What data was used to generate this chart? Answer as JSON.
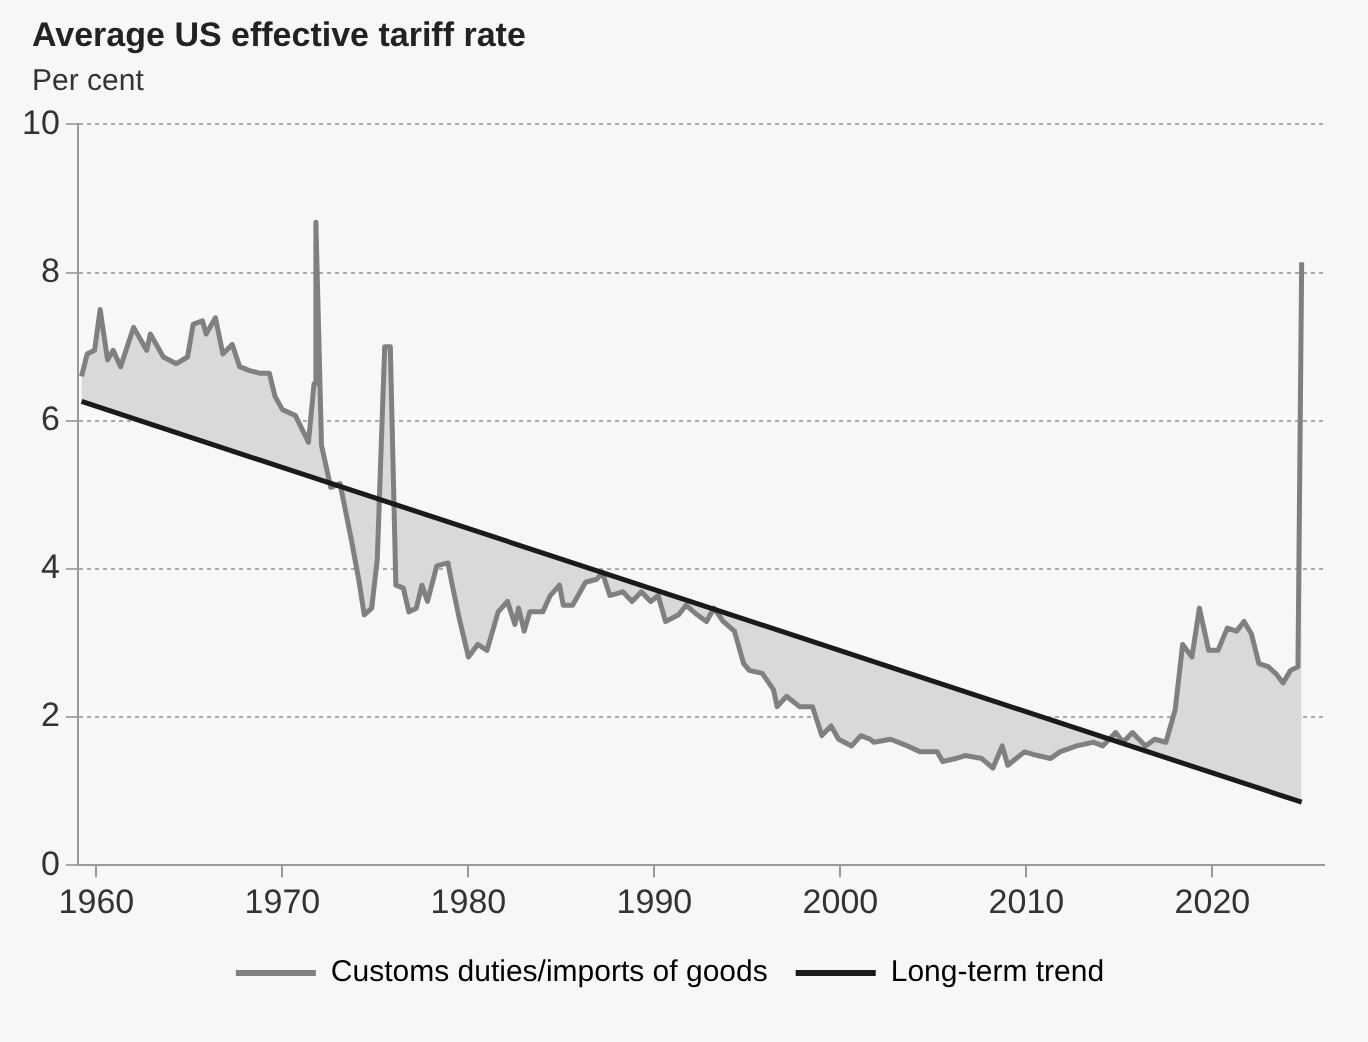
{
  "chart_data": {
    "type": "line",
    "title": "Average US effective tariff rate",
    "ylabel": "Per cent",
    "xlim": [
      1959,
      2026
    ],
    "xticks": [
      1960,
      1970,
      1980,
      1990,
      2000,
      2010,
      2020
    ],
    "ylim": [
      0,
      10
    ],
    "yticks": [
      0,
      2,
      4,
      6,
      8,
      10
    ],
    "grid": "y",
    "legend": "bottom",
    "marker": "none",
    "line_style": "solid",
    "series": [
      {
        "name": "Customs duties/imports of goods",
        "type": "area",
        "color": "#808080",
        "x": [
          1959.2,
          1959.5,
          1959.9,
          1960.2,
          1960.6,
          1960.9,
          1961.3,
          1962.0,
          1962.7,
          1962.9,
          1963.6,
          1964.3,
          1964.9,
          1965.2,
          1965.7,
          1965.9,
          1966.4,
          1966.8,
          1967.3,
          1967.7,
          1968.2,
          1968.8,
          1969.3,
          1969.6,
          1970.0,
          1970.7,
          1971.4,
          1971.7,
          1971.8,
          1972.1,
          1972.6,
          1973.1,
          1973.7,
          1974.1,
          1974.4,
          1974.8,
          1975.1,
          1975.5,
          1975.8,
          1976.1,
          1976.5,
          1976.8,
          1977.2,
          1977.5,
          1977.8,
          1978.3,
          1978.9,
          1979.1,
          1979.5,
          1980.0,
          1980.5,
          1981.0,
          1981.6,
          1982.1,
          1982.5,
          1982.7,
          1983.0,
          1983.3,
          1984.0,
          1984.4,
          1984.9,
          1985.1,
          1985.6,
          1986.3,
          1986.9,
          1987.2,
          1987.6,
          1988.3,
          1988.8,
          1989.3,
          1989.8,
          1990.2,
          1990.6,
          1991.3,
          1991.7,
          1992.3,
          1992.8,
          1993.2,
          1993.7,
          1994.3,
          1994.8,
          1995.1,
          1995.8,
          1996.4,
          1996.6,
          1997.1,
          1997.8,
          1998.5,
          1999.0,
          1999.5,
          1999.9,
          2000.6,
          2001.1,
          2001.6,
          2001.8,
          2002.7,
          2003.6,
          2004.3,
          2005.2,
          2005.5,
          2006.2,
          2006.7,
          2007.6,
          2008.2,
          2008.7,
          2009.0,
          2009.9,
          2010.6,
          2011.3,
          2011.8,
          2012.7,
          2013.6,
          2014.1,
          2014.8,
          2015.2,
          2015.7,
          2016.4,
          2016.9,
          2017.5,
          2018.0,
          2018.4,
          2018.9,
          2019.3,
          2019.8,
          2020.3,
          2020.8,
          2021.3,
          2021.7,
          2022.1,
          2022.5,
          2023.0,
          2023.4,
          2023.8,
          2024.2,
          2024.6,
          2024.8
        ],
        "values": [
          6.6,
          6.9,
          6.95,
          7.5,
          6.82,
          6.95,
          6.73,
          7.26,
          6.95,
          7.17,
          6.86,
          6.77,
          6.86,
          7.3,
          7.35,
          7.17,
          7.39,
          6.9,
          7.03,
          6.73,
          6.68,
          6.64,
          6.64,
          6.33,
          6.15,
          6.07,
          5.71,
          6.5,
          8.68,
          5.67,
          5.1,
          5.15,
          4.4,
          3.86,
          3.38,
          3.47,
          4.13,
          7.0,
          7.0,
          3.78,
          3.74,
          3.42,
          3.47,
          3.78,
          3.56,
          4.04,
          4.08,
          3.82,
          3.34,
          2.81,
          2.98,
          2.9,
          3.42,
          3.56,
          3.25,
          3.47,
          3.16,
          3.42,
          3.42,
          3.64,
          3.78,
          3.51,
          3.51,
          3.82,
          3.86,
          3.95,
          3.64,
          3.69,
          3.56,
          3.69,
          3.56,
          3.64,
          3.29,
          3.38,
          3.51,
          3.38,
          3.29,
          3.47,
          3.29,
          3.16,
          2.72,
          2.63,
          2.59,
          2.37,
          2.14,
          2.28,
          2.14,
          2.14,
          1.75,
          1.88,
          1.7,
          1.61,
          1.75,
          1.7,
          1.66,
          1.7,
          1.61,
          1.53,
          1.53,
          1.4,
          1.44,
          1.48,
          1.44,
          1.31,
          1.61,
          1.35,
          1.53,
          1.48,
          1.44,
          1.53,
          1.61,
          1.66,
          1.61,
          1.79,
          1.66,
          1.79,
          1.61,
          1.7,
          1.66,
          2.1,
          2.98,
          2.81,
          3.47,
          2.9,
          2.9,
          3.2,
          3.16,
          3.29,
          3.12,
          2.72,
          2.68,
          2.59,
          2.46,
          2.63,
          2.68,
          8.14
        ]
      },
      {
        "name": "Long-term trend",
        "color": "#1a1a1a",
        "x": [
          1959.2,
          2024.8
        ],
        "values": [
          6.26,
          0.85
        ]
      }
    ]
  }
}
